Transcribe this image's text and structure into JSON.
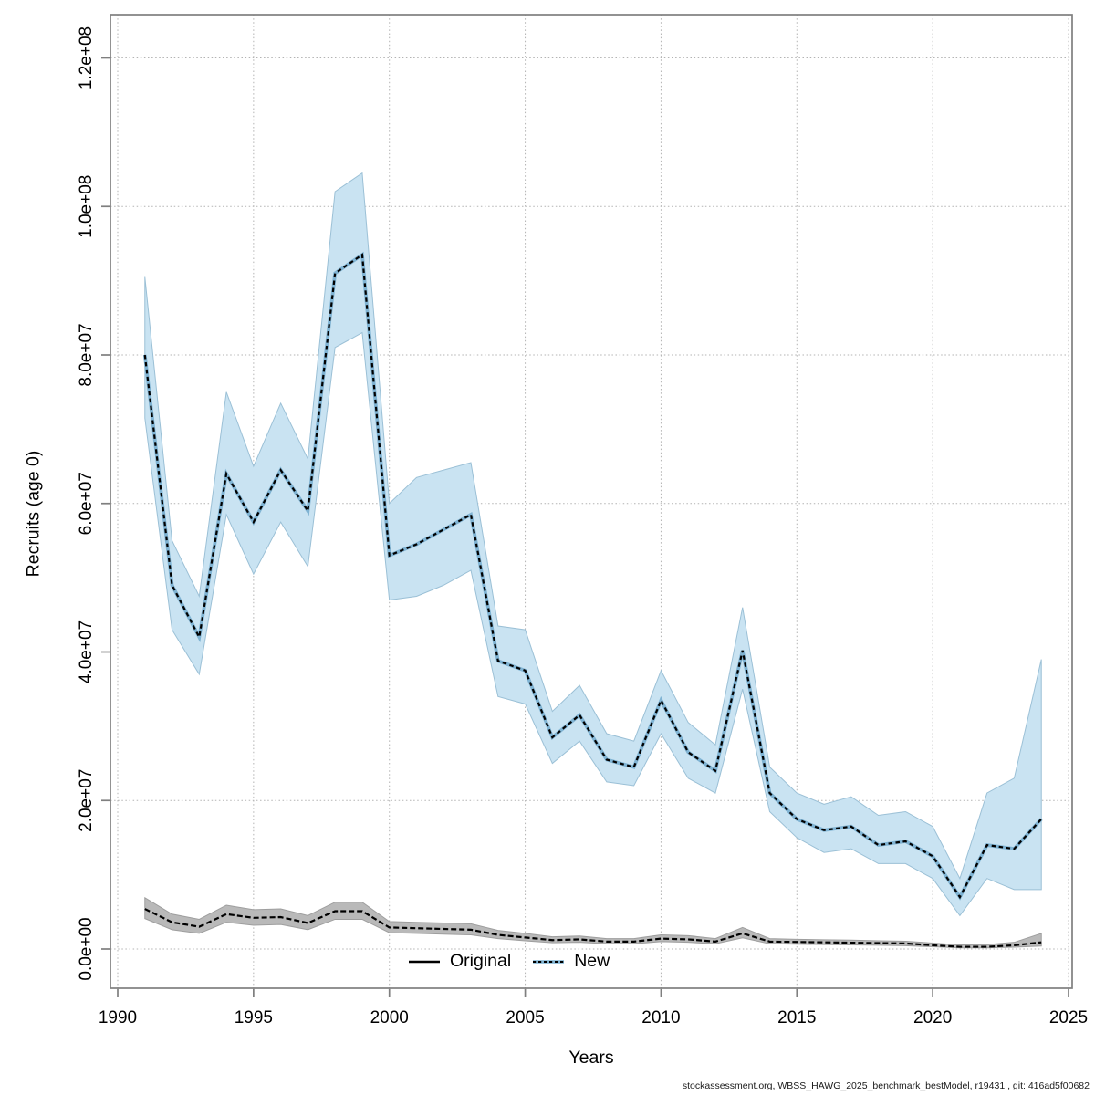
{
  "figure": {
    "xlabel": "Years",
    "ylabel": "Recruits (age 0)",
    "footer": "stockassessment.org, WBSS_HAWG_2025_benchmark_bestModel, r19431 , git: 416ad5f00682"
  },
  "legend": {
    "position": "bottom-center",
    "items": [
      {
        "label": "Original",
        "line_style": "solid",
        "line_color": "#000000",
        "underlay_color": null
      },
      {
        "label": "New",
        "line_style": "dashed",
        "line_color": "#000000",
        "underlay_color": "#7fb3d3"
      }
    ]
  },
  "colors": {
    "frame": "#7f7f7f",
    "gridline": "#b3b3b3",
    "new_band_fill": "#c9e3f2",
    "new_band_stroke": "#9bc0d6",
    "original_band_fill": "#b9b9b9",
    "original_band_stroke": "#9e9e9e"
  },
  "chart_data": {
    "type": "line",
    "title": "",
    "xlabel": "Years",
    "ylabel": "Recruits (age 0)",
    "grid": true,
    "legend_position": "bottom-center",
    "xlim": [
      1989.7,
      2025.3
    ],
    "ylim": [
      -5000000.0,
      124700000.0
    ],
    "x_ticks": [
      {
        "value": 1990,
        "label": "1990"
      },
      {
        "value": 1995,
        "label": "1995"
      },
      {
        "value": 2000,
        "label": "2000"
      },
      {
        "value": 2005,
        "label": "2005"
      },
      {
        "value": 2010,
        "label": "2010"
      },
      {
        "value": 2015,
        "label": "2015"
      },
      {
        "value": 2020,
        "label": "2020"
      },
      {
        "value": 2025,
        "label": "2025"
      }
    ],
    "y_ticks": [
      {
        "value": 0,
        "label": "0.0e+00"
      },
      {
        "value": 20000000.0,
        "label": "2.0e+07"
      },
      {
        "value": 40000000.0,
        "label": "4.0e+07"
      },
      {
        "value": 60000000.0,
        "label": "6.0e+07"
      },
      {
        "value": 80000000.0,
        "label": "8.0e+07"
      },
      {
        "value": 100000000.0,
        "label": "1.0e+08"
      },
      {
        "value": 120000000.0,
        "label": "1.2e+08"
      }
    ],
    "x": [
      1991,
      1992,
      1993,
      1994,
      1995,
      1996,
      1997,
      1998,
      1999,
      2000,
      2001,
      2002,
      2003,
      2004,
      2005,
      2006,
      2007,
      2008,
      2009,
      2010,
      2011,
      2012,
      2013,
      2014,
      2015,
      2016,
      2017,
      2018,
      2019,
      2020,
      2021,
      2022,
      2023,
      2024
    ],
    "series": [
      {
        "name": "Original",
        "line_color": "#000000",
        "line_dash": "6 3",
        "underlay_color": null,
        "band_fill": "#b9b9b9",
        "band_stroke": "#9e9e9e",
        "values": [
          5400000.0,
          3600000.0,
          3000000.0,
          4700000.0,
          4200000.0,
          4300000.0,
          3500000.0,
          5100000.0,
          5100000.0,
          2900000.0,
          2800000.0,
          2700000.0,
          2600000.0,
          1900000.0,
          1550000.0,
          1200000.0,
          1300000.0,
          1000000.0,
          1000000.0,
          1400000.0,
          1300000.0,
          1000000.0,
          2100000.0,
          1000000.0,
          950000.0,
          900000.0,
          850000.0,
          800000.0,
          750000.0,
          500000.0,
          300000.0,
          300000.0,
          500000.0,
          900000.0
        ],
        "lower": [
          4100000.0,
          2600000.0,
          2100000.0,
          3600000.0,
          3200000.0,
          3300000.0,
          2600000.0,
          4000000.0,
          4000000.0,
          2200000.0,
          2100000.0,
          2000000.0,
          1900000.0,
          1400000.0,
          1100000.0,
          850000.0,
          900000.0,
          700000.0,
          700000.0,
          1000000.0,
          900000.0,
          700000.0,
          1500000.0,
          700000.0,
          650000.0,
          600000.0,
          550000.0,
          500000.0,
          450000.0,
          300000.0,
          150000.0,
          150000.0,
          250000.0,
          400000.0
        ],
        "upper": [
          6900000.0,
          4700000.0,
          4000000.0,
          5900000.0,
          5300000.0,
          5400000.0,
          4500000.0,
          6300000.0,
          6300000.0,
          3700000.0,
          3600000.0,
          3500000.0,
          3400000.0,
          2500000.0,
          2100000.0,
          1650000.0,
          1750000.0,
          1400000.0,
          1400000.0,
          1900000.0,
          1800000.0,
          1400000.0,
          2900000.0,
          1400000.0,
          1300000.0,
          1250000.0,
          1200000.0,
          1100000.0,
          1050000.0,
          800000.0,
          550000.0,
          600000.0,
          900000.0,
          2100000.0
        ]
      },
      {
        "name": "New",
        "line_color": "#000000",
        "line_dash": "4.5 3.5",
        "underlay_color": "#7fb3d3",
        "band_fill": "#c9e3f2",
        "band_stroke": "#9bc0d6",
        "values": [
          80000000.0,
          49000000.0,
          42000000.0,
          64000000.0,
          57500000.0,
          64500000.0,
          59000000.0,
          91000000.0,
          93500000.0,
          53000000.0,
          54500000.0,
          56500000.0,
          58500000.0,
          38800000.0,
          37500000.0,
          28500000.0,
          31500000.0,
          25500000.0,
          24500000.0,
          33500000.0,
          26500000.0,
          24000000.0,
          40200000.0,
          21000000.0,
          17500000.0,
          16000000.0,
          16500000.0,
          14000000.0,
          14500000.0,
          12500000.0,
          7000000.0,
          14000000.0,
          13500000.0,
          17500000.0
        ],
        "lower": [
          71500000.0,
          43000000.0,
          37000000.0,
          58500000.0,
          50500000.0,
          57500000.0,
          51500000.0,
          81000000.0,
          83000000.0,
          47000000.0,
          47500000.0,
          49000000.0,
          51000000.0,
          34000000.0,
          33000000.0,
          25000000.0,
          28000000.0,
          22500000.0,
          22000000.0,
          29000000.0,
          23000000.0,
          21000000.0,
          35000000.0,
          18500000.0,
          15000000.0,
          13000000.0,
          13500000.0,
          11500000.0,
          11500000.0,
          9500000.0,
          4500000.0,
          9500000.0,
          8000000.0,
          8000000.0
        ],
        "upper": [
          90500000.0,
          55000000.0,
          47500000.0,
          75000000.0,
          65000000.0,
          73500000.0,
          66000000.0,
          102000000.0,
          104500000.0,
          60000000.0,
          63500000.0,
          64500000.0,
          65500000.0,
          43500000.0,
          43000000.0,
          32000000.0,
          35500000.0,
          29000000.0,
          28000000.0,
          37500000.0,
          30500000.0,
          27500000.0,
          46000000.0,
          24500000.0,
          21000000.0,
          19500000.0,
          20500000.0,
          18000000.0,
          18500000.0,
          16500000.0,
          9500000.0,
          21000000.0,
          23000000.0,
          39000000.0
        ]
      }
    ]
  }
}
